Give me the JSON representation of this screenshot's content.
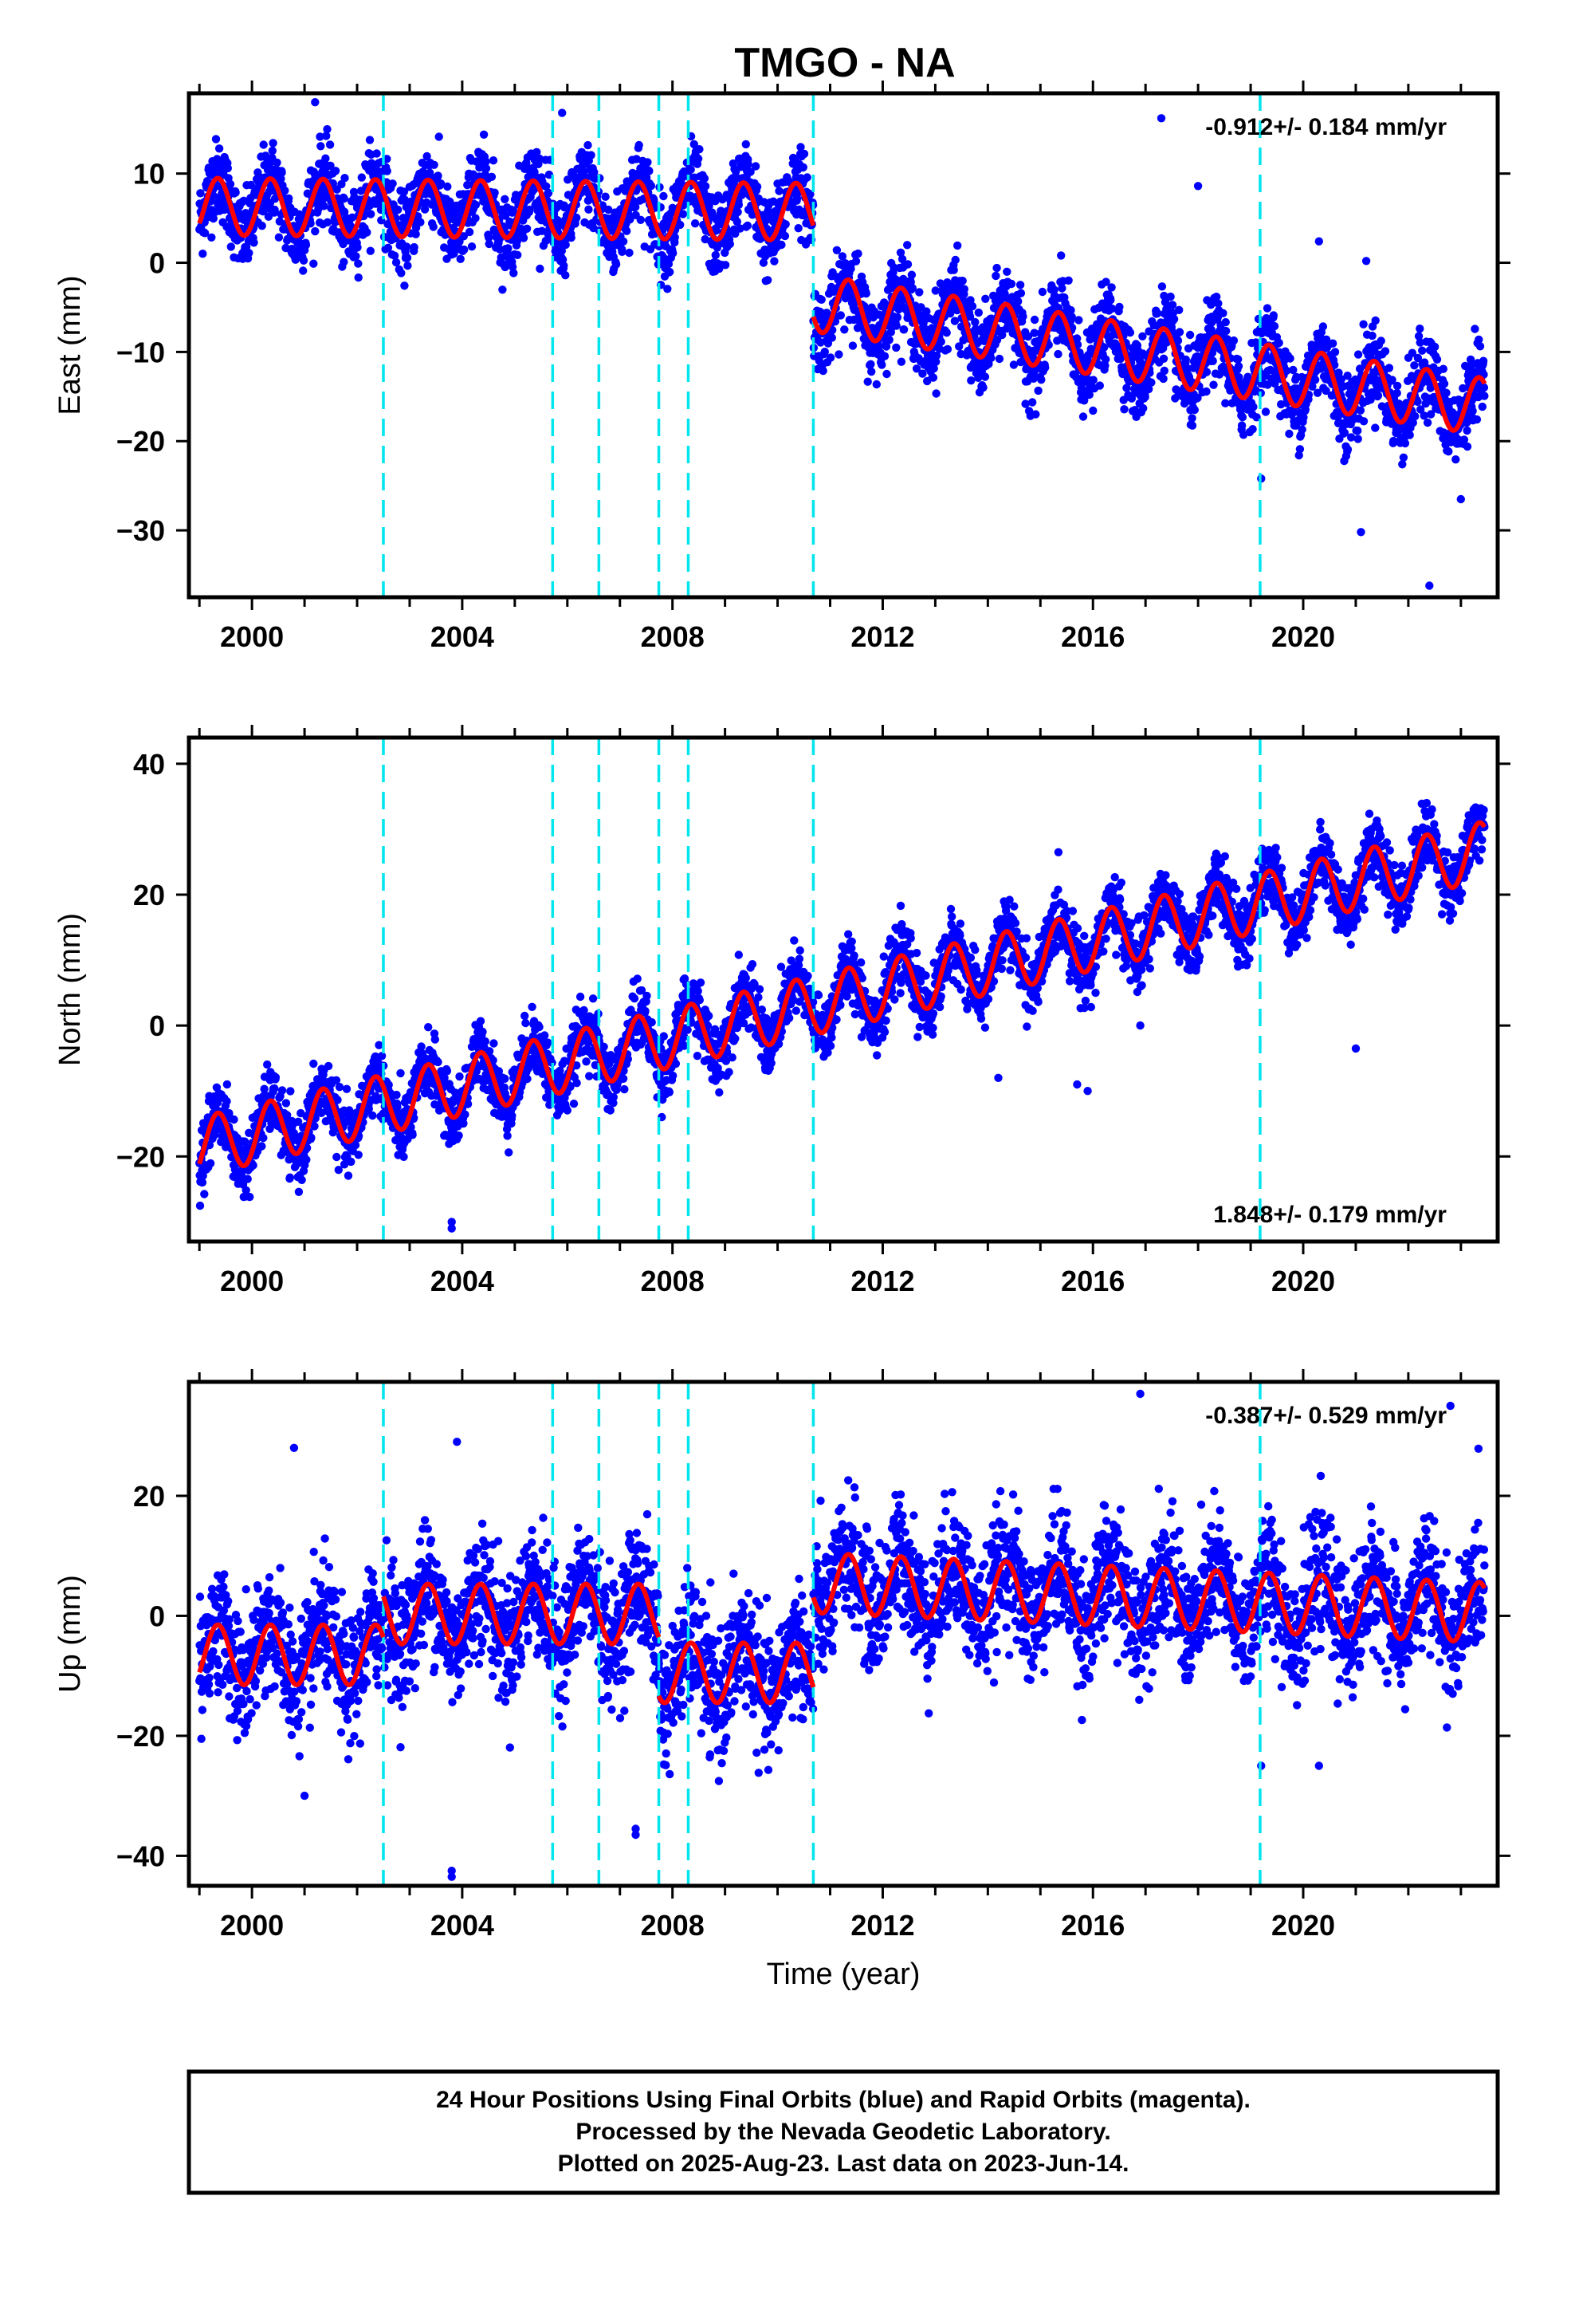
{
  "figure": {
    "title": "TMGO - NA",
    "caption_lines": [
      "24 Hour Positions Using Final Orbits (blue) and Rapid Orbits (magenta).",
      "Processed by the Nevada Geodetic Laboratory.",
      "Plotted on 2025-Aug-23. Last data on 2023-Jun-14."
    ],
    "colors": {
      "points": "#0000ff",
      "model": "#ff0000",
      "events": "#00e5ee",
      "frame": "#000000"
    }
  },
  "chart_data": [
    {
      "type": "scatter",
      "name": "east",
      "ylabel": "East (mm)",
      "xlabel": "",
      "xlim": [
        1998.8,
        2023.7
      ],
      "ylim": [
        -37.5,
        19
      ],
      "xticks": [
        2000,
        2004,
        2008,
        2012,
        2016,
        2020
      ],
      "yticks": [
        -30,
        -20,
        -10,
        0,
        10
      ],
      "rate_text": "-0.912+/- 0.184 mm/yr",
      "rate_position": "top-right",
      "event_lines": [
        2002.5,
        2005.72,
        2006.6,
        2007.74,
        2008.3,
        2010.68,
        2019.18
      ],
      "model": {
        "start": 1999.0,
        "end": 2023.45,
        "rate": -0.912,
        "seasonal_amp": 3.2,
        "segments": [
          {
            "from": 1999.0,
            "to": 2010.68,
            "offset_at_start": 6.3,
            "slope": -0.05
          },
          {
            "from": 2010.68,
            "to": 2023.45,
            "offset_at_start": -4.5,
            "slope": -0.912
          }
        ]
      },
      "scatter_sd": 2.2,
      "outliers": [
        [
          2001.2,
          18.0
        ],
        [
          2005.9,
          16.8
        ],
        [
          2017.3,
          16.2
        ],
        [
          2018.0,
          8.6
        ],
        [
          2019.2,
          -24.2
        ],
        [
          2021.1,
          -30.2
        ],
        [
          2022.4,
          -36.2
        ],
        [
          2023.0,
          -26.5
        ],
        [
          2020.3,
          2.4
        ],
        [
          2021.2,
          0.2
        ]
      ]
    },
    {
      "type": "scatter",
      "name": "north",
      "ylabel": "North (mm)",
      "xlabel": "",
      "xlim": [
        1998.8,
        2023.7
      ],
      "ylim": [
        -33,
        44
      ],
      "xticks": [
        2000,
        2004,
        2008,
        2012,
        2016,
        2020
      ],
      "yticks": [
        -20,
        0,
        20,
        40
      ],
      "rate_text": "1.848+/- 0.179 mm/yr",
      "rate_position": "bottom-right",
      "event_lines": [
        2002.5,
        2005.72,
        2006.6,
        2007.74,
        2008.3,
        2010.68,
        2019.18
      ],
      "model": {
        "start": 1999.0,
        "end": 2023.45,
        "rate": 1.848,
        "seasonal_amp": 4.5,
        "segments": [
          {
            "from": 1999.0,
            "to": 2023.45,
            "offset_at_start": -18.5,
            "slope": 1.848
          }
        ]
      },
      "scatter_sd": 2.4,
      "outliers": [
        [
          2003.8,
          -31.0
        ],
        [
          2003.8,
          -30.0
        ],
        [
          2015.7,
          -9.0
        ],
        [
          2015.9,
          -10.0
        ],
        [
          2021.0,
          -3.5
        ],
        [
          2014.2,
          -8.0
        ],
        [
          2016.9,
          0.0
        ]
      ]
    },
    {
      "type": "scatter",
      "name": "up",
      "ylabel": "Up (mm)",
      "xlabel": "Time (year)",
      "xlim": [
        1998.8,
        2023.7
      ],
      "ylim": [
        -45,
        39
      ],
      "xticks": [
        2000,
        2004,
        2008,
        2012,
        2016,
        2020
      ],
      "yticks": [
        -40,
        -20,
        0,
        20
      ],
      "rate_text": "-0.387+/- 0.529 mm/yr",
      "rate_position": "top-right",
      "event_lines": [
        2002.5,
        2005.72,
        2006.6,
        2007.74,
        2008.3,
        2010.68,
        2019.18
      ],
      "model": {
        "start": 1999.0,
        "end": 2023.45,
        "rate": -0.387,
        "seasonal_amp": 5.0,
        "segments": [
          {
            "from": 1999.0,
            "to": 2002.5,
            "offset_at_start": -6.5,
            "slope": 0.0
          },
          {
            "from": 2002.5,
            "to": 2007.74,
            "offset_at_start": 0.3,
            "slope": 0.0
          },
          {
            "from": 2007.74,
            "to": 2010.68,
            "offset_at_start": -9.5,
            "slope": 0.0
          },
          {
            "from": 2010.68,
            "to": 2023.45,
            "offset_at_start": 5.5,
            "slope": -0.387
          }
        ]
      },
      "scatter_sd": 5.2,
      "outliers": [
        [
          2003.8,
          -42.5
        ],
        [
          2003.8,
          -43.5
        ],
        [
          2007.3,
          -35.5
        ],
        [
          2007.3,
          -36.5
        ],
        [
          2016.9,
          37.0
        ],
        [
          2022.8,
          35.0
        ],
        [
          2003.9,
          29.0
        ],
        [
          2000.8,
          28.0
        ],
        [
          2019.2,
          -25.0
        ],
        [
          2020.3,
          -25.0
        ],
        [
          2001.0,
          -30.0
        ]
      ]
    }
  ]
}
